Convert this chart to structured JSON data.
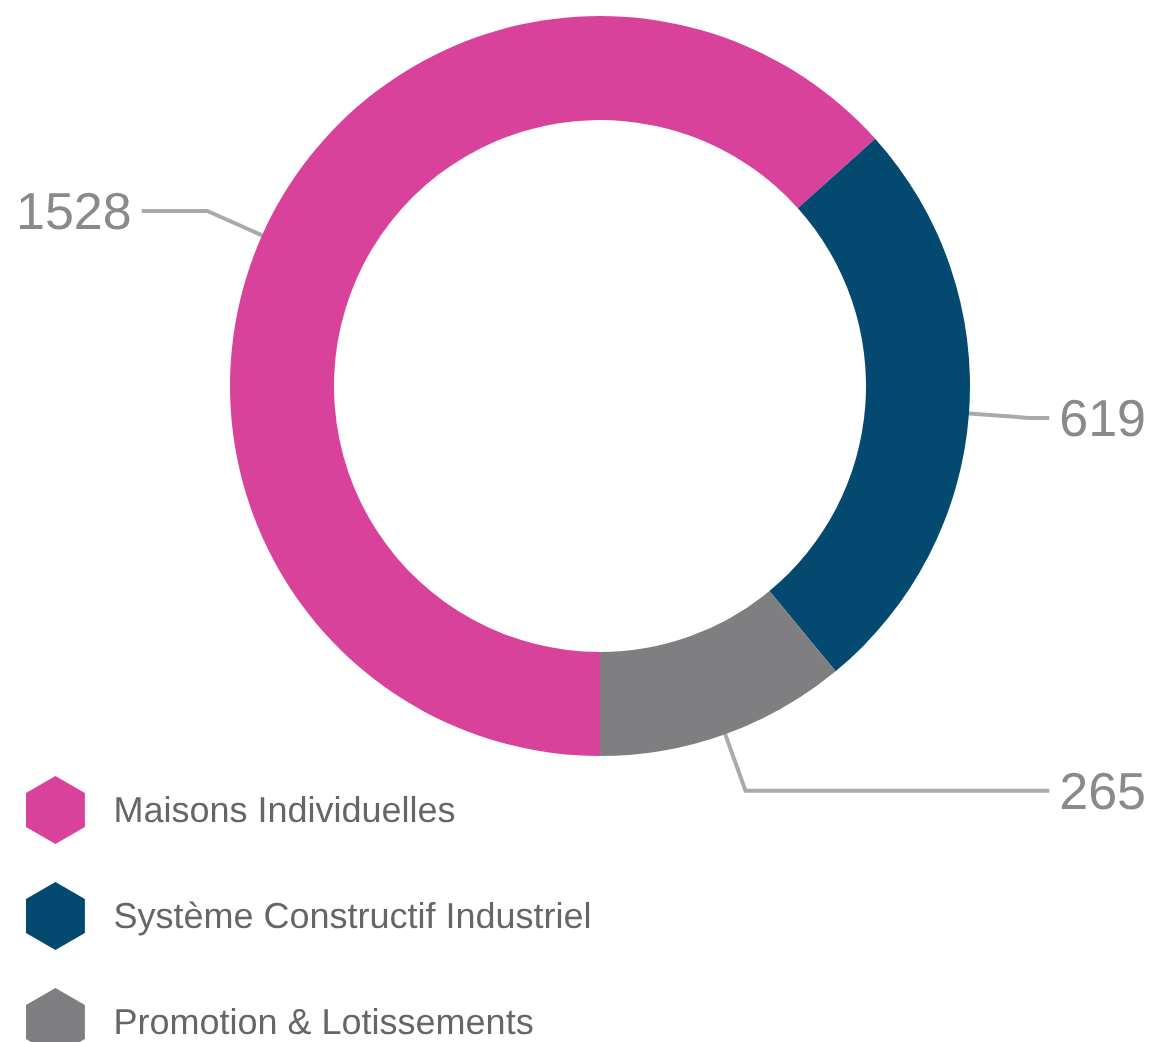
{
  "chart_data": {
    "type": "donut",
    "categories": [
      "Maisons Individuelles",
      "Système Constructif Industriel",
      "Promotion & Lotissements"
    ],
    "values": [
      1528,
      619,
      265
    ],
    "colors": [
      "#d9429a",
      "#044a70",
      "#7f7f82"
    ],
    "data_labels": true,
    "legend": "bottom left"
  }
}
